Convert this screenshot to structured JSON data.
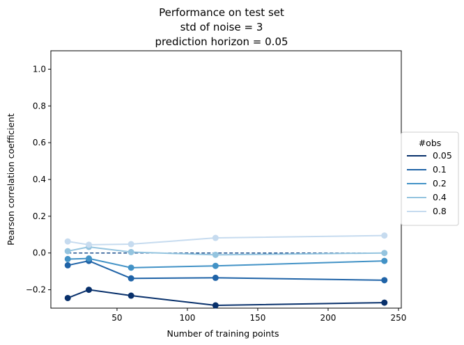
{
  "chart_data": {
    "type": "line",
    "title": [
      "Performance on test set",
      "std of noise = 3",
      "prediction horizon = 0.05"
    ],
    "xlabel": "Number of training points",
    "ylabel": "Pearson correlation coefficient",
    "xlim": [
      3,
      252
    ],
    "ylim": [
      -0.3,
      1.1
    ],
    "xticks": [
      50,
      100,
      150,
      200,
      250
    ],
    "yticks": [
      -0.2,
      0.0,
      0.2,
      0.4,
      0.6,
      0.8,
      1.0
    ],
    "ytick_labels": [
      "−0.2",
      "0.0",
      "0.2",
      "0.4",
      "0.6",
      "0.8",
      "1.0"
    ],
    "x": [
      15,
      30,
      60,
      120,
      240
    ],
    "reference_line": {
      "y": 0.0,
      "style": "dashed",
      "color": "#1a4e8c"
    },
    "legend": {
      "title": "#obs",
      "placement": "right-outside"
    },
    "series": [
      {
        "name": "0.05",
        "color": "#08306b",
        "values": [
          -0.245,
          -0.2,
          -0.232,
          -0.285,
          -0.27
        ]
      },
      {
        "name": "0.1",
        "color": "#1f63a7",
        "values": [
          -0.067,
          -0.043,
          -0.138,
          -0.135,
          -0.148
        ]
      },
      {
        "name": "0.2",
        "color": "#4292c6",
        "values": [
          -0.033,
          -0.03,
          -0.08,
          -0.07,
          -0.043
        ]
      },
      {
        "name": "0.4",
        "color": "#94c4df",
        "values": [
          0.01,
          0.033,
          0.005,
          -0.01,
          0.0
        ]
      },
      {
        "name": "0.8",
        "color": "#c6dbef",
        "values": [
          0.063,
          0.045,
          0.048,
          0.082,
          0.095
        ]
      }
    ],
    "grid": false
  }
}
